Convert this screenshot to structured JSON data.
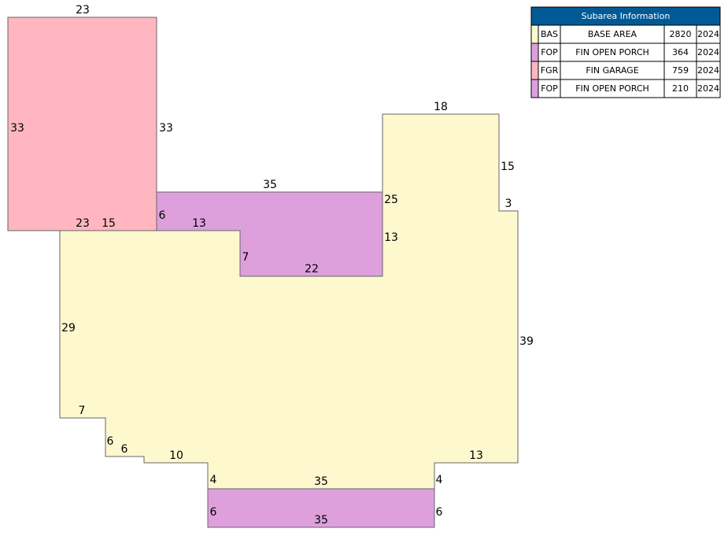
{
  "sketch": {
    "dimensions": [
      23,
      33,
      33,
      23,
      15,
      6,
      13,
      35,
      7,
      22,
      25,
      13,
      18,
      15,
      3,
      39,
      29,
      7,
      6,
      6,
      10,
      13,
      4,
      35,
      4,
      6,
      35,
      6
    ]
  },
  "legend": {
    "title": "Subarea Information",
    "rows": [
      {
        "code": "BAS",
        "description": "BASE AREA",
        "area": 2820,
        "year": 2024
      },
      {
        "code": "FOP",
        "description": "FIN OPEN PORCH",
        "area": 364,
        "year": 2024
      },
      {
        "code": "FGR",
        "description": "FIN GARAGE",
        "area": 759,
        "year": 2024
      },
      {
        "code": "FOP",
        "description": "FIN OPEN PORCH",
        "area": 210,
        "year": 2024
      }
    ]
  }
}
